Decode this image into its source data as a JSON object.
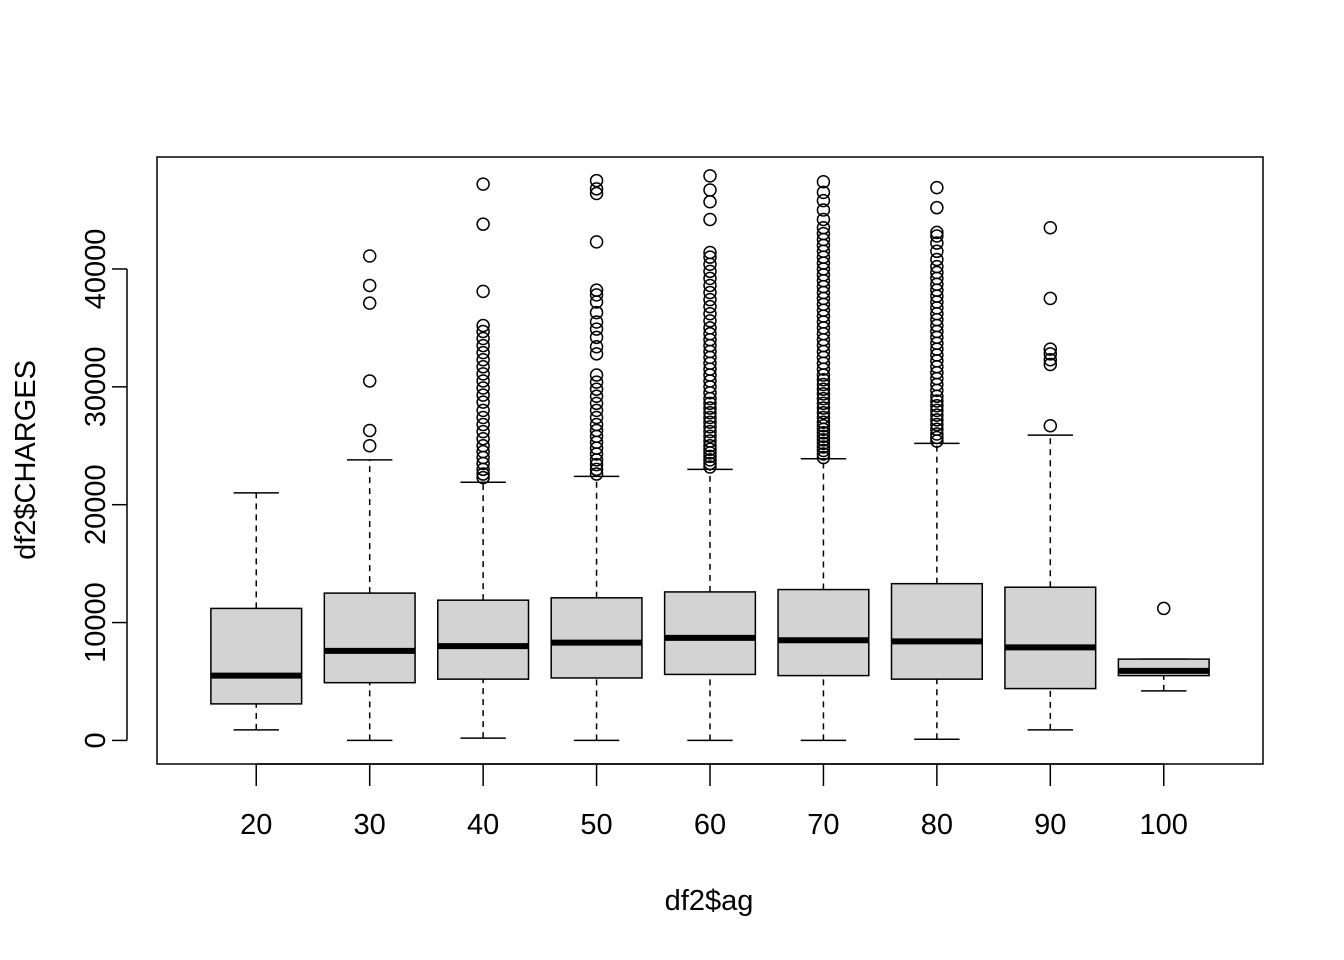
{
  "chart_data": {
    "type": "boxplot",
    "xlabel": "df2$ag",
    "ylabel": "df2$CHARGES",
    "ylim": [
      -2000,
      49500
    ],
    "yticks": [
      0,
      10000,
      20000,
      30000,
      40000
    ],
    "box_fill": "#d3d3d3",
    "line_color": "#000000",
    "background": "#ffffff",
    "grid": false,
    "legend": "none",
    "categories": [
      "20",
      "30",
      "40",
      "50",
      "60",
      "70",
      "80",
      "90",
      "100"
    ],
    "boxes": [
      {
        "category": "20",
        "whisker_low": 900,
        "q1": 3100,
        "median": 5500,
        "q3": 11200,
        "whisker_high": 21000,
        "outliers": []
      },
      {
        "category": "30",
        "whisker_low": 0,
        "q1": 4900,
        "median": 7600,
        "q3": 12500,
        "whisker_high": 23800,
        "outliers": [
          25000,
          26300,
          30500,
          37100,
          38600,
          41100
        ]
      },
      {
        "category": "40",
        "whisker_low": 200,
        "q1": 5200,
        "median": 8000,
        "q3": 11900,
        "whisker_high": 21900,
        "outliers": [
          22300,
          22600,
          23000,
          23500,
          24000,
          24500,
          25000,
          25600,
          26200,
          26800,
          27400,
          28000,
          28700,
          29300,
          29900,
          30500,
          31100,
          31700,
          32300,
          32900,
          33500,
          34100,
          34700,
          35200,
          38100,
          43800,
          47200
        ]
      },
      {
        "category": "50",
        "whisker_low": 0,
        "q1": 5300,
        "median": 8300,
        "q3": 12100,
        "whisker_high": 22400,
        "outliers": [
          22600,
          23000,
          23400,
          23800,
          24300,
          24800,
          25300,
          25800,
          26300,
          26800,
          27400,
          28000,
          28600,
          29200,
          29800,
          30400,
          31000,
          32800,
          33400,
          34200,
          34900,
          35500,
          36300,
          37200,
          37800,
          38200,
          42300,
          46400,
          46800,
          47500
        ]
      },
      {
        "category": "60",
        "whisker_low": 0,
        "q1": 5600,
        "median": 8700,
        "q3": 12600,
        "whisker_high": 23000,
        "outliers": [
          23200,
          23500,
          23800,
          24100,
          24400,
          24700,
          25000,
          25400,
          25800,
          26200,
          26600,
          27000,
          27400,
          27800,
          28200,
          28600,
          29000,
          29500,
          30000,
          30500,
          31000,
          31500,
          32000,
          32500,
          33000,
          33500,
          34000,
          34500,
          35000,
          35600,
          36200,
          36800,
          37400,
          38000,
          38600,
          39200,
          39800,
          40400,
          41000,
          41400,
          44200,
          45700,
          46700,
          47900
        ]
      },
      {
        "category": "70",
        "whisker_low": 0,
        "q1": 5500,
        "median": 8500,
        "q3": 12800,
        "whisker_high": 23900,
        "outliers": [
          24000,
          24300,
          24600,
          24900,
          25200,
          25500,
          25800,
          26100,
          26400,
          26700,
          27000,
          27400,
          27800,
          28200,
          28600,
          29000,
          29400,
          29800,
          30200,
          30600,
          31000,
          31500,
          32000,
          32500,
          33000,
          33500,
          34000,
          34500,
          35000,
          35500,
          36000,
          36500,
          37000,
          37500,
          38000,
          38500,
          39000,
          39500,
          40000,
          40500,
          41000,
          41500,
          42000,
          42500,
          43000,
          43500,
          44200,
          45000,
          45800,
          46500,
          47400
        ]
      },
      {
        "category": "80",
        "whisker_low": 100,
        "q1": 5200,
        "median": 8400,
        "q3": 13300,
        "whisker_high": 25200,
        "outliers": [
          25400,
          25700,
          26000,
          26400,
          26800,
          27200,
          27600,
          28000,
          28400,
          28800,
          29200,
          29700,
          30200,
          30700,
          31200,
          31700,
          32200,
          32700,
          33200,
          33700,
          34200,
          34700,
          35200,
          35700,
          36200,
          36700,
          37200,
          37700,
          38200,
          38700,
          39200,
          39700,
          40200,
          40800,
          41500,
          42200,
          42800,
          43100,
          45200,
          46900
        ]
      },
      {
        "category": "90",
        "whisker_low": 900,
        "q1": 4400,
        "median": 7900,
        "q3": 13000,
        "whisker_high": 25900,
        "outliers": [
          26700,
          31900,
          32300,
          32800,
          33200,
          37500,
          43500
        ]
      },
      {
        "category": "100",
        "whisker_low": 4200,
        "q1": 5500,
        "median": 5900,
        "q3": 6900,
        "whisker_high": 6900,
        "outliers": [
          11200
        ]
      }
    ]
  }
}
